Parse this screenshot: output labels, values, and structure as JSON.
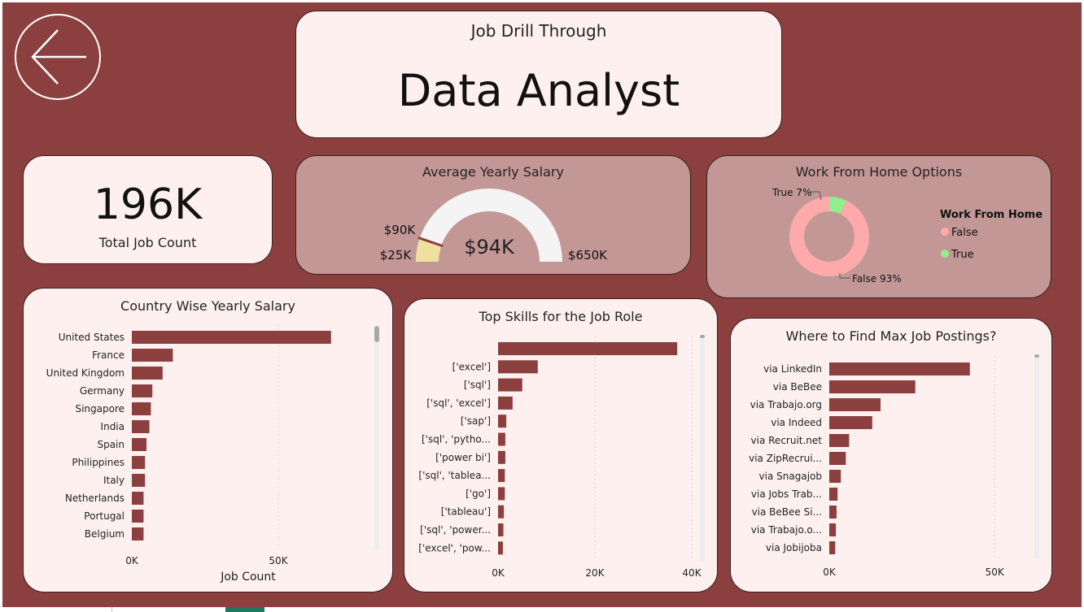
{
  "header": {
    "subtitle": "Job Drill Through",
    "title": "Data Analyst"
  },
  "kpi": {
    "value": "196K",
    "label": "Total Job Count"
  },
  "gauge": {
    "title": "Average Yearly Salary",
    "min_label": "$25K",
    "max_label": "$650K",
    "target_label": "$90K",
    "value_label": "$94K",
    "min": 25,
    "max": 650,
    "value": 94,
    "target": 90,
    "fill_color": "#f0e0a0",
    "track_color": "#f4f4f4",
    "target_color": "#8b3f3f"
  },
  "wfh": {
    "title": "Work From Home Options",
    "legend_title": "Work From Home",
    "chart_data": {
      "type": "pie",
      "categories": [
        "False",
        "True"
      ],
      "values": [
        93,
        7
      ],
      "data_labels": [
        "False 93%",
        "True 7%"
      ],
      "colors": [
        "#ffaaaa",
        "#90ee90"
      ],
      "legend": "right"
    }
  },
  "country": {
    "title": "Country Wise Yearly Salary",
    "chart_data": {
      "type": "bar",
      "orientation": "horizontal",
      "categories": [
        "United States",
        "France",
        "United Kingdom",
        "Germany",
        "Singapore",
        "India",
        "Spain",
        "Philippines",
        "Italy",
        "Netherlands",
        "Portugal",
        "Belgium"
      ],
      "values": [
        68000,
        14000,
        10500,
        7000,
        6500,
        6000,
        5000,
        4500,
        4500,
        4000,
        4000,
        4000
      ],
      "xlabel": "Job Count",
      "ylabel": "",
      "xlim": [
        0,
        70000
      ],
      "xticks": [
        0,
        50000
      ],
      "xtick_labels": [
        "0K",
        "50K"
      ],
      "grid": true,
      "bar_color": "#8b3f3f"
    }
  },
  "skills": {
    "title": "Top Skills for the Job Role",
    "chart_data": {
      "type": "bar",
      "orientation": "horizontal",
      "categories": [
        "",
        "['excel']",
        "['sql']",
        "['sql', 'excel']",
        "['sap']",
        "['sql', 'pytho...",
        "['power bi']",
        "['sql', 'tablea...",
        "['go']",
        "['tableau']",
        "['sql', 'power...",
        "['excel', 'pow..."
      ],
      "values": [
        37000,
        8200,
        5000,
        3000,
        1700,
        1500,
        1500,
        1400,
        1400,
        1200,
        1100,
        1000
      ],
      "xlabel": "",
      "ylabel": "",
      "xlim": [
        0,
        40000
      ],
      "xticks": [
        0,
        20000,
        40000
      ],
      "xtick_labels": [
        "0K",
        "20K",
        "40K"
      ],
      "grid": true,
      "bar_color": "#8b3f3f"
    }
  },
  "postings": {
    "title": "Where to Find Max Job Postings?",
    "chart_data": {
      "type": "bar",
      "orientation": "horizontal",
      "categories": [
        "via LinkedIn",
        "via BeBee",
        "via Trabajo.org",
        "via Indeed",
        "via Recruit.net",
        "via ZipRecrui...",
        "via Snagajob",
        "via Jobs Trab...",
        "via BeBee Si...",
        "via Trabajo.o...",
        "via Jobijoba"
      ],
      "values": [
        42500,
        26000,
        15500,
        13000,
        6000,
        5000,
        3500,
        2500,
        2200,
        2000,
        1800
      ],
      "xlabel": "",
      "ylabel": "",
      "xlim": [
        0,
        62000
      ],
      "xticks": [
        0,
        50000
      ],
      "xtick_labels": [
        "0K",
        "50K"
      ],
      "grid": true,
      "bar_color": "#8b3f3f"
    }
  }
}
